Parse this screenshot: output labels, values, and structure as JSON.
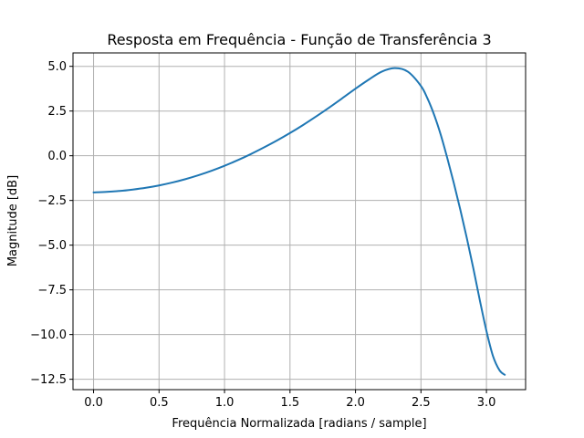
{
  "chart_data": {
    "type": "line",
    "title": "Resposta em Frequência - Função de Transferência 3",
    "xlabel": "Frequência Normalizada [radians / sample]",
    "ylabel": "Magnitude [dB]",
    "xlim": [
      -0.157,
      3.299
    ],
    "ylim": [
      -13.08,
      5.75
    ],
    "grid": true,
    "xticks": [
      0.0,
      0.5,
      1.0,
      1.5,
      2.0,
      2.5,
      3.0
    ],
    "xtick_labels": [
      "0.0",
      "0.5",
      "1.0",
      "1.5",
      "2.0",
      "2.5",
      "3.0"
    ],
    "yticks": [
      5.0,
      2.5,
      0.0,
      -2.5,
      -5.0,
      -7.5,
      -10.0,
      -12.5
    ],
    "ytick_labels": [
      "5.0",
      "2.5",
      "0.0",
      "−2.5",
      "−5.0",
      "−7.5",
      "−10.0",
      "−12.5"
    ],
    "series": [
      {
        "color": "#1f77b4",
        "x": [
          0.0,
          0.1,
          0.2,
          0.3,
          0.4,
          0.5,
          0.6,
          0.7,
          0.8,
          0.9,
          1.0,
          1.1,
          1.2,
          1.3,
          1.4,
          1.5,
          1.6,
          1.7,
          1.8,
          1.9,
          2.0,
          2.1,
          2.2,
          2.3,
          2.4,
          2.5,
          2.55,
          2.6,
          2.65,
          2.7,
          2.75,
          2.8,
          2.85,
          2.9,
          2.95,
          3.0,
          3.05,
          3.1,
          3.14
        ],
        "y": [
          -2.05,
          -2.02,
          -1.97,
          -1.89,
          -1.79,
          -1.66,
          -1.5,
          -1.31,
          -1.09,
          -0.84,
          -0.56,
          -0.25,
          0.09,
          0.46,
          0.85,
          1.27,
          1.72,
          2.2,
          2.7,
          3.22,
          3.75,
          4.25,
          4.7,
          4.9,
          4.7,
          3.9,
          3.2,
          2.3,
          1.2,
          -0.1,
          -1.5,
          -3.0,
          -4.6,
          -6.3,
          -8.1,
          -9.8,
          -11.2,
          -12.0,
          -12.25
        ]
      }
    ]
  }
}
